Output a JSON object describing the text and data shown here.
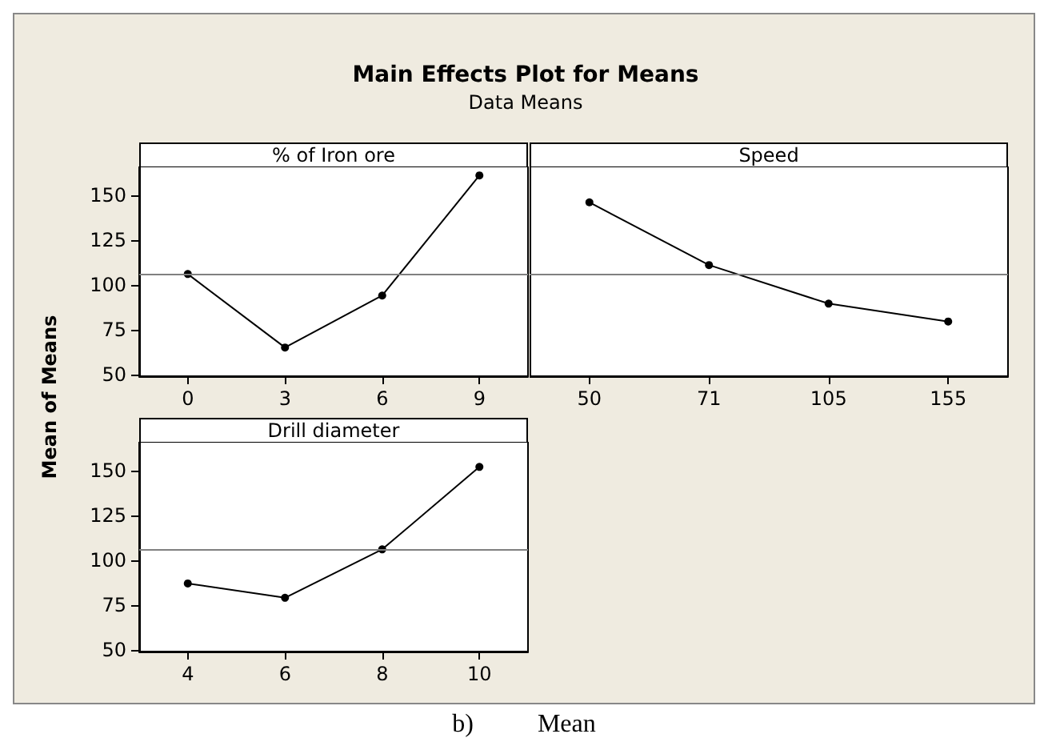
{
  "chart_data": [
    {
      "type": "line",
      "title": "Main Effects Plot for Means",
      "subtitle": "Data Means",
      "ylabel": "Mean of Means",
      "xlabel": "% of Iron ore",
      "categories": [
        "0",
        "3",
        "6",
        "9"
      ],
      "series": [
        {
          "color": "#000000",
          "values": [
            106,
            65,
            94,
            161
          ]
        }
      ],
      "ylim": [
        49,
        166
      ],
      "yticks": [
        50,
        75,
        100,
        125,
        150
      ],
      "ref_lines": [
        {
          "axis": "y",
          "value": 106,
          "color": "#808080"
        }
      ],
      "marker": "circle",
      "line_style": "solid",
      "annotations": [
        "b)          Mean"
      ]
    },
    {
      "type": "line",
      "xlabel": "Speed",
      "categories": [
        "50",
        "71",
        "105",
        "155"
      ],
      "series": [
        {
          "color": "#000000",
          "values": [
            146,
            111,
            89.5,
            79.5
          ]
        }
      ],
      "ylim": [
        49,
        166
      ],
      "yticks": [
        50,
        75,
        100,
        125,
        150
      ],
      "ref_lines": [
        {
          "axis": "y",
          "value": 106,
          "color": "#808080"
        }
      ],
      "marker": "circle",
      "line_style": "solid",
      "tick_labels": "x"
    },
    {
      "type": "line",
      "xlabel": "Drill diameter",
      "categories": [
        "4",
        "6",
        "8",
        "10"
      ],
      "series": [
        {
          "color": "#000000",
          "values": [
            87,
            79,
            106,
            152
          ]
        }
      ],
      "ylim": [
        49,
        166
      ],
      "yticks": [
        50,
        75,
        100,
        125,
        150
      ],
      "ref_lines": [
        {
          "axis": "y",
          "value": 106,
          "color": "#808080"
        }
      ],
      "marker": "circle",
      "line_style": "solid"
    }
  ]
}
